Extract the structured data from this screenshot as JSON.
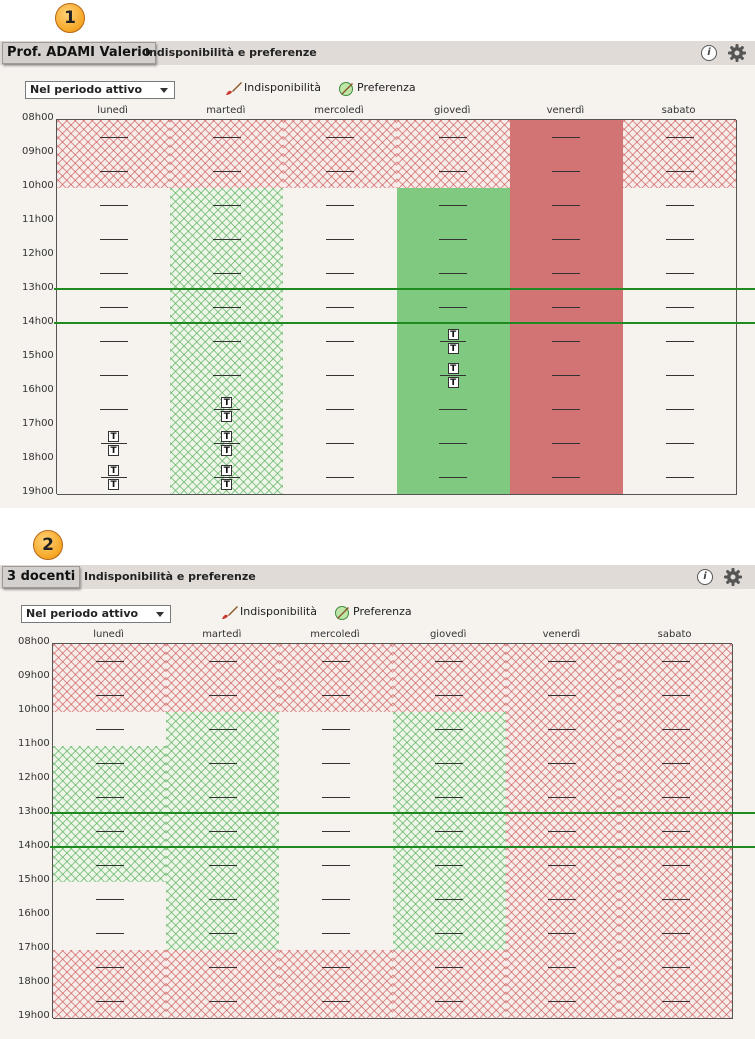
{
  "sections": [
    {
      "badge": "1",
      "name": "Prof. ADAMI Valerio",
      "title": "Indisponibilità e preferenze",
      "period_select": "Nel periodo attivo",
      "legend_unavail": "Indisponibilità",
      "legend_pref": "Preferenza",
      "days": [
        "lunedì",
        "martedì",
        "mercoledì",
        "giovedì",
        "venerdì",
        "sabato"
      ],
      "hours": [
        "08h00",
        "09h00",
        "10h00",
        "11h00",
        "12h00",
        "13h00",
        "14h00",
        "15h00",
        "16h00",
        "17h00",
        "18h00",
        "19h00"
      ],
      "columns": [
        [
          "red-hatch",
          "red-hatch",
          "none",
          "none",
          "none",
          "none",
          "none",
          "none",
          "none",
          "none",
          "none"
        ],
        [
          "red-hatch",
          "red-hatch",
          "green-hatch",
          "green-hatch",
          "green-hatch",
          "green-hatch",
          "green-hatch",
          "green-hatch",
          "green-hatch",
          "green-hatch",
          "green-hatch"
        ],
        [
          "red-hatch",
          "red-hatch",
          "none",
          "none",
          "none",
          "none",
          "none",
          "none",
          "none",
          "none",
          "none"
        ],
        [
          "red-hatch",
          "red-hatch",
          "green-solid",
          "green-solid",
          "green-solid",
          "green-solid",
          "green-solid",
          "green-solid",
          "green-solid",
          "green-solid",
          "green-solid"
        ],
        [
          "red-solid",
          "red-solid",
          "red-solid",
          "red-solid",
          "red-solid",
          "red-solid",
          "red-solid",
          "red-solid",
          "red-solid",
          "red-solid",
          "red-solid"
        ],
        [
          "red-hatch",
          "red-hatch",
          "none",
          "none",
          "none",
          "none",
          "none",
          "none",
          "none",
          "none",
          "none"
        ]
      ],
      "symbols": [
        [
          0,
          0,
          0,
          0,
          0,
          0,
          0,
          0,
          0,
          2,
          2
        ],
        [
          0,
          0,
          0,
          0,
          0,
          0,
          0,
          0,
          2,
          2,
          2
        ],
        [
          0,
          0,
          0,
          0,
          0,
          0,
          0,
          0,
          0,
          0,
          0
        ],
        [
          0,
          0,
          0,
          0,
          0,
          0,
          2,
          2,
          0,
          0,
          0
        ],
        [
          0,
          0,
          0,
          0,
          0,
          0,
          0,
          0,
          0,
          0,
          0
        ],
        [
          0,
          0,
          0,
          0,
          0,
          0,
          0,
          0,
          0,
          0,
          0
        ]
      ],
      "colors": {
        "header_bg": "#e0dbd7",
        "panel_bg": "#f6f2ee",
        "green_line": "#1f8a1f",
        "red_solid": "#d27474",
        "green_solid": "#80c980"
      }
    },
    {
      "badge": "2",
      "name": "3 docenti",
      "title": "Indisponibilità e preferenze",
      "period_select": "Nel periodo attivo",
      "legend_unavail": "Indisponibilità",
      "legend_pref": "Preferenza",
      "days": [
        "lunedì",
        "martedì",
        "mercoledì",
        "giovedì",
        "venerdì",
        "sabato"
      ],
      "hours": [
        "08h00",
        "09h00",
        "10h00",
        "11h00",
        "12h00",
        "13h00",
        "14h00",
        "15h00",
        "16h00",
        "17h00",
        "18h00",
        "19h00"
      ],
      "columns": [
        [
          "red-hatch",
          "red-hatch",
          "none",
          "green-hatch",
          "green-hatch",
          "green-hatch",
          "green-hatch",
          "none",
          "none",
          "red-hatch",
          "red-hatch"
        ],
        [
          "red-hatch",
          "red-hatch",
          "green-hatch",
          "green-hatch",
          "green-hatch",
          "green-hatch",
          "green-hatch",
          "green-hatch",
          "green-hatch",
          "red-hatch",
          "red-hatch"
        ],
        [
          "red-hatch",
          "red-hatch",
          "none",
          "none",
          "none",
          "none",
          "none",
          "none",
          "none",
          "red-hatch",
          "red-hatch"
        ],
        [
          "red-hatch",
          "red-hatch",
          "green-hatch",
          "green-hatch",
          "green-hatch",
          "green-hatch",
          "green-hatch",
          "green-hatch",
          "green-hatch",
          "red-hatch",
          "red-hatch"
        ],
        [
          "red-hatch",
          "red-hatch",
          "red-hatch",
          "red-hatch",
          "red-hatch",
          "red-hatch",
          "red-hatch",
          "red-hatch",
          "red-hatch",
          "red-hatch",
          "red-hatch"
        ],
        [
          "red-hatch",
          "red-hatch",
          "red-hatch",
          "red-hatch",
          "red-hatch",
          "red-hatch",
          "red-hatch",
          "red-hatch",
          "red-hatch",
          "red-hatch",
          "red-hatch"
        ]
      ],
      "symbols": [
        [
          0,
          0,
          0,
          0,
          0,
          0,
          0,
          0,
          0,
          0,
          0
        ],
        [
          0,
          0,
          0,
          0,
          0,
          0,
          0,
          0,
          0,
          0,
          0
        ],
        [
          0,
          0,
          0,
          0,
          0,
          0,
          0,
          0,
          0,
          0,
          0
        ],
        [
          0,
          0,
          0,
          0,
          0,
          0,
          0,
          0,
          0,
          0,
          0
        ],
        [
          0,
          0,
          0,
          0,
          0,
          0,
          0,
          0,
          0,
          0,
          0
        ],
        [
          0,
          0,
          0,
          0,
          0,
          0,
          0,
          0,
          0,
          0,
          0
        ]
      ],
      "colors": {
        "header_bg": "#e0dbd7",
        "panel_bg": "#f6f2ee",
        "green_line": "#1f8a1f"
      }
    }
  ],
  "icons": {
    "info": "info-icon",
    "settings": "gear-icon",
    "brush": "brush-icon",
    "preference": "preference-icon",
    "teacher": "teacher-icon"
  },
  "teacher_glyph": "T"
}
